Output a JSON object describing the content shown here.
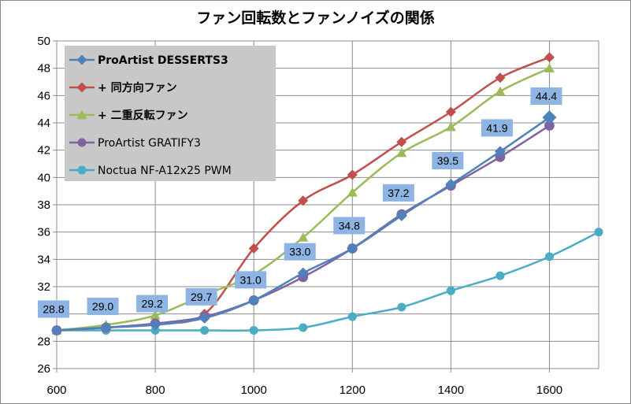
{
  "chart_data": {
    "type": "line",
    "title": "ファン回転数とファンノイズの関係",
    "xlabel": "",
    "ylabel": "",
    "xlim": [
      600,
      1700
    ],
    "ylim": [
      26,
      50
    ],
    "xticks": [
      600,
      800,
      1000,
      1200,
      1400,
      1600
    ],
    "yticks": [
      26,
      28,
      30,
      32,
      34,
      36,
      38,
      40,
      42,
      44,
      46,
      48,
      50
    ],
    "grid": true,
    "legend_position": "top-left",
    "series": [
      {
        "name": "ProArtist DESSERTS3",
        "bold": true,
        "color": "#4f81bd",
        "marker": "diamond",
        "x": [
          600,
          700,
          800,
          900,
          1000,
          1100,
          1200,
          1300,
          1400,
          1500,
          1600
        ],
        "y": [
          28.8,
          29.0,
          29.2,
          29.7,
          31.0,
          33.0,
          34.8,
          37.2,
          39.5,
          41.9,
          44.4
        ],
        "data_labels": [
          "28.8",
          "29.0",
          "29.2",
          "29.7",
          "31.0",
          "33.0",
          "34.8",
          "37.2",
          "39.5",
          "41.9",
          "44.4"
        ]
      },
      {
        "name": "+ 同方向ファン",
        "bold": true,
        "color": "#c0504d",
        "marker": "diamond",
        "x": [
          600,
          700,
          800,
          900,
          1000,
          1100,
          1200,
          1300,
          1400,
          1500,
          1600
        ],
        "y": [
          28.8,
          29.0,
          29.3,
          30.0,
          34.8,
          38.3,
          40.2,
          42.6,
          44.8,
          47.3,
          48.8
        ]
      },
      {
        "name": "+ 二重反転ファン",
        "bold": true,
        "color": "#9bbb59",
        "marker": "triangle",
        "x": [
          600,
          700,
          800,
          900,
          1000,
          1100,
          1200,
          1300,
          1400,
          1500,
          1600
        ],
        "y": [
          28.8,
          29.2,
          29.9,
          31.4,
          32.9,
          35.6,
          38.9,
          41.8,
          43.7,
          46.3,
          48.0
        ]
      },
      {
        "name": "ProArtist GRATIFY3",
        "bold": false,
        "color": "#8064a2",
        "marker": "circle",
        "x": [
          600,
          700,
          800,
          900,
          1000,
          1100,
          1200,
          1300,
          1400,
          1500,
          1600
        ],
        "y": [
          28.8,
          29.0,
          29.3,
          29.8,
          31.0,
          32.7,
          34.8,
          37.3,
          39.4,
          41.5,
          43.8
        ]
      },
      {
        "name": "Noctua NF-A12x25 PWM",
        "bold": false,
        "color": "#4bacc6",
        "marker": "circle",
        "x": [
          600,
          700,
          800,
          900,
          1000,
          1100,
          1200,
          1300,
          1400,
          1500,
          1600,
          1700
        ],
        "y": [
          28.8,
          28.8,
          28.8,
          28.8,
          28.8,
          29.0,
          29.8,
          30.5,
          31.7,
          32.8,
          34.2,
          36.0
        ]
      }
    ]
  }
}
